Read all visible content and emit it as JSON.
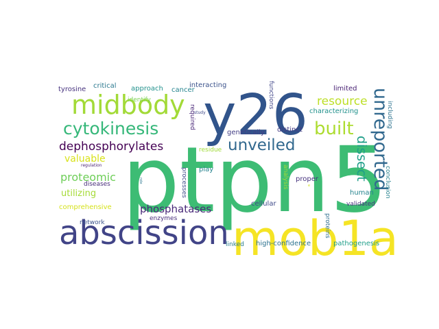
{
  "words": [
    {
      "text": "ptpn5",
      "color": "#3dbc74"
    },
    {
      "text": "mob1a",
      "color": "#f5e425"
    },
    {
      "text": "y26",
      "color": "#31548b"
    },
    {
      "text": "abscission",
      "color": "#414487"
    },
    {
      "text": "midbody",
      "color": "#a2da37"
    },
    {
      "text": "cytokinesis",
      "color": "#35b779"
    },
    {
      "text": "unveiled",
      "color": "#31688e"
    },
    {
      "text": "built",
      "color": "#addc30"
    },
    {
      "text": "unreported",
      "color": "#31688e"
    },
    {
      "text": "dephosphorylates",
      "color": "#440154"
    },
    {
      "text": "resource",
      "color": "#bddf26"
    },
    {
      "text": "dissect",
      "color": "#1f9e89"
    },
    {
      "text": "valuable",
      "color": "#d8e219"
    },
    {
      "text": "proteomic",
      "color": "#6ece58"
    },
    {
      "text": "phosphatases",
      "color": "#482878"
    },
    {
      "text": "utilizing",
      "color": "#a5db36"
    },
    {
      "text": "tyrosine",
      "color": "#46327e"
    },
    {
      "text": "critical",
      "color": "#2a788e"
    },
    {
      "text": "approach",
      "color": "#21918c"
    },
    {
      "text": "cancer",
      "color": "#25848e"
    },
    {
      "text": "interacting",
      "color": "#3b528b"
    },
    {
      "text": "limited",
      "color": "#482173"
    },
    {
      "text": "identify",
      "color": "#7ad151"
    },
    {
      "text": "required",
      "color": "#482677"
    },
    {
      "text": "functions",
      "color": "#404688"
    },
    {
      "text": "study",
      "color": "#3e4989"
    },
    {
      "text": "including",
      "color": "#2c728e"
    },
    {
      "text": "characterizing",
      "color": "#21918c"
    },
    {
      "text": "genetically",
      "color": "#433e85"
    },
    {
      "text": "distinct",
      "color": "#443a83"
    },
    {
      "text": "regulation",
      "color": "#481f70"
    },
    {
      "text": "diseases",
      "color": "#472c7a"
    },
    {
      "text": "comprehensive",
      "color": "#d5e21a"
    },
    {
      "text": "residue",
      "color": "#a0da39"
    },
    {
      "text": "play",
      "color": "#26828e"
    },
    {
      "text": "processes",
      "color": "#3e4a89"
    },
    {
      "text": "role",
      "color": "#2a768e"
    },
    {
      "text": "analysis",
      "color": "#9fda3a"
    },
    {
      "text": "proper",
      "color": "#46327e"
    },
    {
      "text": "linked",
      "color": "#287c8e"
    },
    {
      "text": "human",
      "color": "#25848e"
    },
    {
      "text": "conclusion",
      "color": "#26828e"
    },
    {
      "text": "enzymes",
      "color": "#472d7b"
    },
    {
      "text": "cellular",
      "color": "#3e4a89"
    },
    {
      "text": "validated",
      "color": "#46337f"
    },
    {
      "text": "network",
      "color": "#3b528b"
    },
    {
      "text": "proteins",
      "color": "#2e6e8e"
    },
    {
      "text": "high-confidence",
      "color": "#2c728e"
    },
    {
      "text": "pathogenesis",
      "color": "#1f9e89"
    },
    {
      "text": "e",
      "color": "#d2e21b"
    }
  ]
}
